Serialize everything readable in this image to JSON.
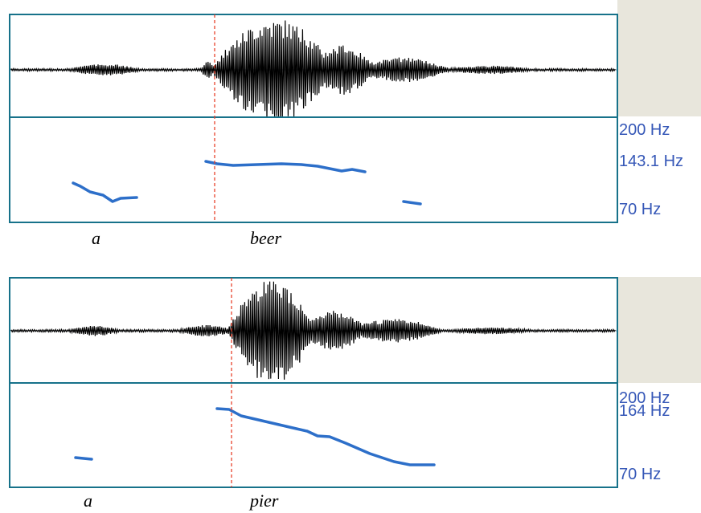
{
  "colors": {
    "frame": "#17728a",
    "waveform": "#000000",
    "pitch_track": "#2d6fc9",
    "boundary": "#e8422b",
    "side_panel": "#e8e6dc",
    "hz_label": "#3557b7"
  },
  "panels": [
    {
      "id": "beer",
      "pitch_labels": [
        "200 Hz",
        "143.1 Hz",
        "70 Hz"
      ],
      "words": [
        "a",
        "beer"
      ],
      "pitch_segments": [
        [
          [
            91,
            228
          ],
          [
            100,
            232
          ],
          [
            112,
            239
          ],
          [
            128,
            243
          ],
          [
            140,
            251
          ],
          [
            150,
            247
          ],
          [
            170,
            246
          ]
        ],
        [
          [
            256,
            201
          ],
          [
            270,
            204
          ],
          [
            290,
            206
          ],
          [
            320,
            205
          ],
          [
            350,
            204
          ],
          [
            375,
            205
          ],
          [
            395,
            207
          ],
          [
            410,
            210
          ],
          [
            425,
            213
          ],
          [
            438,
            211
          ],
          [
            454,
            214
          ]
        ],
        [
          [
            502,
            251
          ],
          [
            523,
            254
          ]
        ]
      ]
    },
    {
      "id": "pier",
      "pitch_labels": [
        "200 Hz",
        "164 Hz",
        "70 Hz"
      ],
      "words": [
        "a",
        "pier"
      ],
      "pitch_segments": [
        [
          [
            94,
            570
          ],
          [
            114,
            572
          ]
        ],
        [
          [
            270,
            509
          ],
          [
            285,
            510
          ],
          [
            300,
            518
          ],
          [
            330,
            525
          ],
          [
            360,
            532
          ],
          [
            382,
            537
          ],
          [
            395,
            543
          ],
          [
            410,
            544
          ],
          [
            430,
            552
          ],
          [
            460,
            565
          ],
          [
            490,
            575
          ],
          [
            510,
            579
          ],
          [
            540,
            579
          ]
        ]
      ]
    }
  ]
}
